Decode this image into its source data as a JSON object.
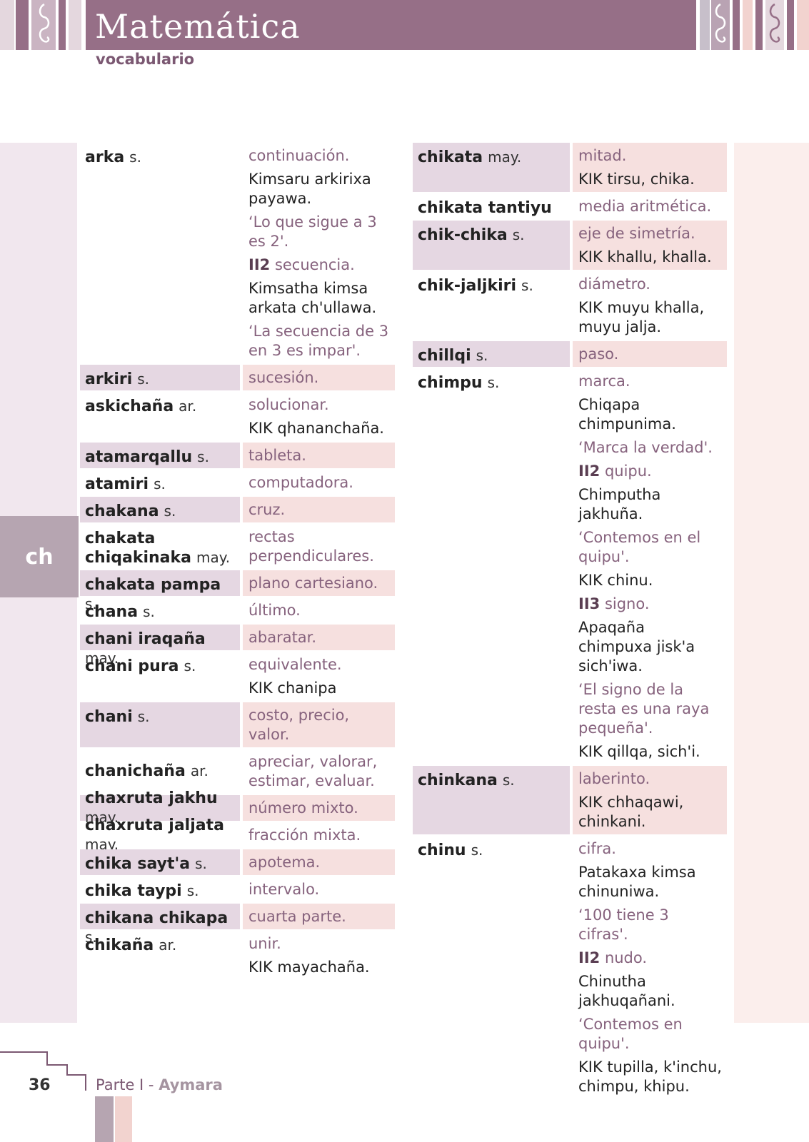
{
  "header": {
    "title": "Matemática",
    "subtitle": "vocabulario"
  },
  "tab_letter": "ch",
  "footer": {
    "page_number": "36",
    "part": "Parte I",
    "separator": " - ",
    "language": "Aymara"
  },
  "colors": {
    "header_bar": "#966f87",
    "term_highlight": "#e5d7e2",
    "def_highlight": "#f6e0df",
    "meaning_text": "#86627d"
  },
  "left_column": [
    {
      "term": "arka",
      "cat": "s.",
      "hl": false,
      "lines": [
        {
          "t": "mean",
          "text": "continuación."
        },
        {
          "t": "ex",
          "text": "Kimsaru arkirixa payawa."
        },
        {
          "t": "tr",
          "text": "‘Lo que sigue a 3 es 2'."
        },
        {
          "t": "sense",
          "num": "II2",
          "text": "secuencia."
        },
        {
          "t": "ex",
          "text": "Kimsatha kimsa arkata ch'ullawa."
        },
        {
          "t": "tr",
          "text": "‘La secuencia de 3 en 3 es impar'."
        }
      ]
    },
    {
      "term": "arkiri",
      "cat": "s.",
      "hl": true,
      "lines": [
        {
          "t": "mean",
          "text": "sucesión."
        }
      ]
    },
    {
      "term": "askichaña",
      "cat": "ar.",
      "hl": false,
      "lines": [
        {
          "t": "mean",
          "text": "solucionar."
        },
        {
          "t": "ex",
          "text": "KIK qhananchaña."
        }
      ]
    },
    {
      "term": "atamarqallu",
      "cat": "s.",
      "hl": true,
      "lines": [
        {
          "t": "mean",
          "text": "tableta."
        }
      ]
    },
    {
      "term": "atamiri",
      "cat": "s.",
      "hl": false,
      "lines": [
        {
          "t": "mean",
          "text": "computadora."
        }
      ]
    },
    {
      "term": "chakana",
      "cat": "s.",
      "hl": true,
      "lines": [
        {
          "t": "mean",
          "text": "cruz."
        }
      ]
    },
    {
      "term": "chakata chiqakinaka",
      "cat": "may.",
      "hl": false,
      "lines": [
        {
          "t": "mean",
          "text": "rectas perpendiculares."
        }
      ]
    },
    {
      "term": "chakata pampa",
      "cat": "s.",
      "hl": true,
      "lines": [
        {
          "t": "mean",
          "text": "plano cartesiano."
        }
      ]
    },
    {
      "term": "chana",
      "cat": "s.",
      "hl": false,
      "lines": [
        {
          "t": "mean",
          "text": "último."
        }
      ]
    },
    {
      "term": "chani iraqaña",
      "cat": "may.",
      "hl": true,
      "lines": [
        {
          "t": "mean",
          "text": "abaratar."
        }
      ]
    },
    {
      "term": "chani pura",
      "cat": "s.",
      "hl": false,
      "lines": [
        {
          "t": "mean",
          "text": "equivalente."
        },
        {
          "t": "ex",
          "text": "KIK chanipa"
        }
      ]
    },
    {
      "term": "chani",
      "cat": "s.",
      "hl": true,
      "lines": [
        {
          "t": "mean",
          "text": "costo, precio, valor."
        }
      ]
    },
    {
      "term": "chanichaña",
      "cat": "ar.",
      "hl": false,
      "mid": true,
      "lines": [
        {
          "t": "mean",
          "text": "apreciar, valorar, estimar, evaluar."
        }
      ]
    },
    {
      "term": "chaxruta jakhu",
      "cat": "may.",
      "hl": true,
      "mid": true,
      "lines": [
        {
          "t": "mean",
          "text": "número mixto."
        }
      ]
    },
    {
      "term": "chaxruta jaljata",
      "cat": "may.",
      "hl": false,
      "mid": true,
      "lines": [
        {
          "t": "mean",
          "text": "fracción mixta."
        }
      ]
    },
    {
      "term": "chika sayt'a",
      "cat": "s.",
      "hl": true,
      "lines": [
        {
          "t": "mean",
          "text": "apotema."
        }
      ]
    },
    {
      "term": "chika taypi",
      "cat": "s.",
      "hl": false,
      "lines": [
        {
          "t": "mean",
          "text": "intervalo."
        }
      ]
    },
    {
      "term": "chikana chikapa",
      "cat": "s.",
      "hl": true,
      "lines": [
        {
          "t": "mean",
          "text": "cuarta parte."
        }
      ]
    },
    {
      "term": "chikaña",
      "cat": "ar.",
      "hl": false,
      "lines": [
        {
          "t": "mean",
          "text": "unir."
        },
        {
          "t": "ex",
          "text": "KIK mayachaña."
        }
      ]
    }
  ],
  "right_column": [
    {
      "term": "chikata",
      "cat": "may.",
      "hl": true,
      "lines": [
        {
          "t": "mean",
          "text": "mitad."
        },
        {
          "t": "ex",
          "text": "KIK tirsu, chika."
        }
      ]
    },
    {
      "term": "chikata tantiyu",
      "cat": "s.",
      "hl": false,
      "lines": [
        {
          "t": "mean",
          "text": "media aritmética."
        }
      ]
    },
    {
      "term": "chik-chika",
      "cat": "s.",
      "hl": true,
      "lines": [
        {
          "t": "mean",
          "text": "eje de simetría."
        },
        {
          "t": "ex",
          "text": "KIK khallu, khalla."
        }
      ]
    },
    {
      "term": "chik-jaljkiri",
      "cat": "s.",
      "hl": false,
      "lines": [
        {
          "t": "mean",
          "text": "diámetro."
        },
        {
          "t": "ex",
          "text": "KIK muyu khalla, muyu jalja."
        }
      ]
    },
    {
      "term": "chillqi",
      "cat": "s.",
      "hl": true,
      "lines": [
        {
          "t": "mean",
          "text": "paso."
        }
      ]
    },
    {
      "term": "chimpu",
      "cat": "s.",
      "hl": false,
      "lines": [
        {
          "t": "mean",
          "text": "marca."
        },
        {
          "t": "ex",
          "text": "Chiqapa chimpunima."
        },
        {
          "t": "tr",
          "text": "‘Marca la verdad'."
        },
        {
          "t": "sense",
          "num": "II2",
          "text": "quipu."
        },
        {
          "t": "ex",
          "text": "Chimputha jakhuña."
        },
        {
          "t": "tr",
          "text": "‘Contemos en el quipu'."
        },
        {
          "t": "ex",
          "text": "KIK chinu."
        },
        {
          "t": "sense",
          "num": "II3",
          "text": "signo."
        },
        {
          "t": "ex",
          "text": "Apaqaña chimpuxa jisk'a sich'iwa."
        },
        {
          "t": "tr",
          "text": "‘El signo de la resta es una raya pequeña'."
        },
        {
          "t": "ex",
          "text": "KIK qillqa, sich'i."
        }
      ]
    },
    {
      "term": "chinkana",
      "cat": "s.",
      "hl": true,
      "lines": [
        {
          "t": "mean",
          "text": "laberinto."
        },
        {
          "t": "ex",
          "text": "KIK chhaqawi, chinkani."
        }
      ]
    },
    {
      "term": "chinu",
      "cat": "s.",
      "hl": false,
      "lines": [
        {
          "t": "mean",
          "text": "cifra."
        },
        {
          "t": "ex",
          "text": "Patakaxa kimsa chinuniwa."
        },
        {
          "t": "tr",
          "text": "‘100 tiene 3 cifras'."
        },
        {
          "t": "sense",
          "num": "II2",
          "text": "nudo."
        },
        {
          "t": "ex",
          "text": "Chinutha jakhuqañani."
        },
        {
          "t": "tr",
          "text": "‘Contemos en quipu'."
        },
        {
          "t": "ex",
          "text": "KIK tupilla, k'inchu, chimpu, khipu."
        }
      ]
    }
  ]
}
